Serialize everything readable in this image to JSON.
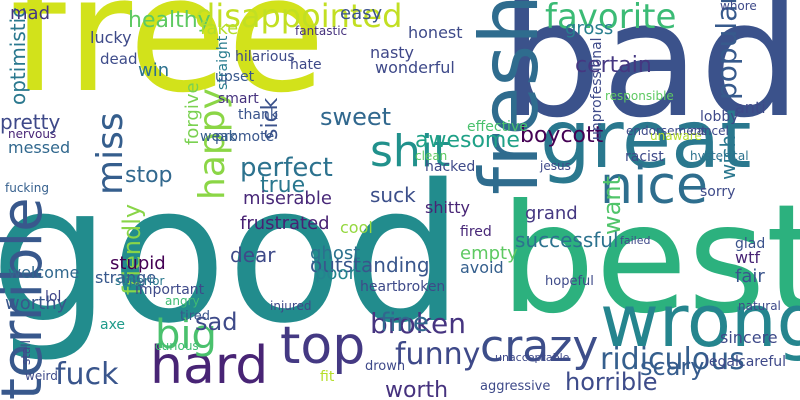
{
  "words": [
    {
      "text": "free",
      "color": "#d2e21b"
    },
    {
      "text": "good",
      "color": "#228c8d"
    },
    {
      "text": "bad",
      "color": "#3b528b"
    },
    {
      "text": "best",
      "color": "#2cb17e"
    },
    {
      "text": "great",
      "color": "#2a788e"
    },
    {
      "text": "wrong",
      "color": "#25858e"
    },
    {
      "text": "fresh",
      "color": "#2f6c8e"
    },
    {
      "text": "terrible",
      "color": "#38588c"
    },
    {
      "text": "disappointed",
      "color": "#c2df23"
    },
    {
      "text": "favorite",
      "color": "#3bbb75"
    },
    {
      "text": "nice",
      "color": "#2e6e8e"
    },
    {
      "text": "crazy",
      "color": "#3d4e8a"
    },
    {
      "text": "top",
      "color": "#443983"
    },
    {
      "text": "hard",
      "color": "#482475"
    },
    {
      "text": "big",
      "color": "#4ac16d"
    },
    {
      "text": "shit",
      "color": "#21918c"
    },
    {
      "text": "broken",
      "color": "#463480"
    },
    {
      "text": "funny",
      "color": "#3e4989"
    },
    {
      "text": "sad",
      "color": "#3e4a89"
    },
    {
      "text": "ridiculous",
      "color": "#355f8d"
    },
    {
      "text": "scary",
      "color": "#365c8d"
    },
    {
      "text": "fuck",
      "color": "#39558c"
    },
    {
      "text": "miss",
      "color": "#355e8d"
    },
    {
      "text": "happy",
      "color": "#8bd646"
    },
    {
      "text": "sweet",
      "color": "#31688e"
    },
    {
      "text": "perfect",
      "color": "#2c728e"
    },
    {
      "text": "fine",
      "color": "#31688e"
    },
    {
      "text": "worth",
      "color": "#46327e"
    },
    {
      "text": "horrible",
      "color": "#3e4c8a"
    },
    {
      "text": "wish",
      "color": "#2a778e"
    },
    {
      "text": "want",
      "color": "#50c46a"
    },
    {
      "text": "friendly",
      "color": "#89d548"
    },
    {
      "text": "popular",
      "color": "#375a8c"
    },
    {
      "text": "stop",
      "color": "#31688e"
    },
    {
      "text": "true",
      "color": "#2a778e"
    },
    {
      "text": "healthy",
      "color": "#5ec962"
    },
    {
      "text": "easy",
      "color": "#3b528b"
    },
    {
      "text": "gross",
      "color": "#287d8e"
    },
    {
      "text": "nasty",
      "color": "#3f4788"
    },
    {
      "text": "wonderful",
      "color": "#3e4989"
    },
    {
      "text": "honest",
      "color": "#3e4a89"
    },
    {
      "text": "boycott",
      "color": "#440154"
    },
    {
      "text": "certain",
      "color": "#453781"
    },
    {
      "text": "awesome",
      "color": "#1fa187"
    },
    {
      "text": "sick",
      "color": "#3b528b"
    },
    {
      "text": "smart",
      "color": "#46327e"
    },
    {
      "text": "thank",
      "color": "#3a548c"
    },
    {
      "text": "forgive",
      "color": "#7ad151"
    },
    {
      "text": "straight",
      "color": "#287c8e"
    },
    {
      "text": "miserable",
      "color": "#482878"
    },
    {
      "text": "dear",
      "color": "#3e4a89"
    },
    {
      "text": "frustrated",
      "color": "#482173"
    },
    {
      "text": "suck",
      "color": "#3c4f8a"
    },
    {
      "text": "outstanding",
      "color": "#39568c"
    },
    {
      "text": "ghost",
      "color": "#2c718e"
    },
    {
      "text": "poor",
      "color": "#25838e"
    },
    {
      "text": "cool",
      "color": "#95d840"
    },
    {
      "text": "empty",
      "color": "#5ec962"
    },
    {
      "text": "avoid",
      "color": "#355f8d"
    },
    {
      "text": "fired",
      "color": "#482878"
    },
    {
      "text": "successful",
      "color": "#2c728e"
    },
    {
      "text": "grand",
      "color": "#453882"
    },
    {
      "text": "fair",
      "color": "#3a548c"
    },
    {
      "text": "wtf",
      "color": "#482475"
    },
    {
      "text": "glad",
      "color": "#3b528b"
    },
    {
      "text": "anti",
      "color": "#3e4989"
    },
    {
      "text": "stupid",
      "color": "#440154"
    },
    {
      "text": "strange",
      "color": "#38588c"
    },
    {
      "text": "messed",
      "color": "#31688e"
    },
    {
      "text": "nervous",
      "color": "#482576"
    },
    {
      "text": "optimistic",
      "color": "#2a788e"
    },
    {
      "text": "mad",
      "color": "#453781"
    },
    {
      "text": "worthy",
      "color": "#39568c"
    },
    {
      "text": "pretty",
      "color": "#3e4989"
    },
    {
      "text": "lucky",
      "color": "#3e4a89"
    },
    {
      "text": "dead",
      "color": "#3e4c8a"
    },
    {
      "text": "win",
      "color": "#2c718e"
    },
    {
      "text": "fake",
      "color": "#b5de2b"
    },
    {
      "text": "upset",
      "color": "#38588c"
    },
    {
      "text": "promote",
      "color": "#39568c"
    },
    {
      "text": "weak",
      "color": "#355f8d"
    },
    {
      "text": "axe",
      "color": "#1e9b8a"
    },
    {
      "text": "angry",
      "color": "#3fbc73"
    },
    {
      "text": "tired",
      "color": "#39568c"
    },
    {
      "text": "hate",
      "color": "#3e4989"
    },
    {
      "text": "hilarious",
      "color": "#3e4a89"
    },
    {
      "text": "fantastic",
      "color": "#46327e"
    },
    {
      "text": "important",
      "color": "#3e4989"
    },
    {
      "text": "superior",
      "color": "#2a788e"
    },
    {
      "text": "curious",
      "color": "#3fbc73"
    },
    {
      "text": "welcome",
      "color": "#31688e"
    },
    {
      "text": "stall",
      "color": "#3e4989"
    },
    {
      "text": "lol",
      "color": "#404688"
    },
    {
      "text": "weird",
      "color": "#3e4a89"
    },
    {
      "text": "fucking",
      "color": "#355f8d"
    },
    {
      "text": "shitty",
      "color": "#482475"
    },
    {
      "text": "clean",
      "color": "#5ec962"
    },
    {
      "text": "hacked",
      "color": "#3e4a89"
    },
    {
      "text": "effective",
      "color": "#4ac16d"
    },
    {
      "text": "jesus",
      "color": "#3e4989"
    },
    {
      "text": "sorry",
      "color": "#3e4a89"
    },
    {
      "text": "lobby",
      "color": "#3e4989"
    },
    {
      "text": "racist",
      "color": "#3e4a89"
    },
    {
      "text": "endorsement",
      "color": "#3e4989"
    },
    {
      "text": "hysterical",
      "color": "#2c728e"
    },
    {
      "text": "unaware",
      "color": "#b5de2b"
    },
    {
      "text": "cancel",
      "color": "#3e4989"
    },
    {
      "text": "whore",
      "color": "#3e4a89"
    },
    {
      "text": "responsible",
      "color": "#5ec962"
    },
    {
      "text": "unprofessional",
      "color": "#3e4a89"
    },
    {
      "text": "legal",
      "color": "#3e4989"
    },
    {
      "text": "sincere",
      "color": "#3e4a89"
    },
    {
      "text": "careful",
      "color": "#3e4989"
    },
    {
      "text": "natural",
      "color": "#3e4a89"
    },
    {
      "text": "fit",
      "color": "#b5de2b"
    },
    {
      "text": "drown",
      "color": "#3e4989"
    },
    {
      "text": "heartbroken",
      "color": "#3e4a89"
    },
    {
      "text": "injured",
      "color": "#3e4989"
    },
    {
      "text": "aggressive",
      "color": "#3e4a89"
    },
    {
      "text": "unacceptable",
      "color": "#3e4989"
    },
    {
      "text": "hopeful",
      "color": "#3e4a89"
    },
    {
      "text": "failed",
      "color": "#3e4989"
    }
  ]
}
